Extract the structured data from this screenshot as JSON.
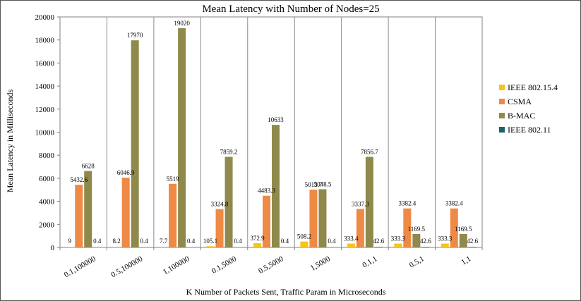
{
  "chart_data": {
    "type": "bar",
    "title": "Mean Latency with Number of Nodes=25",
    "xlabel": "K Number of Packets Sent, Traffic Param in Microseconds",
    "ylabel": "Mean Latency in Milliseconds",
    "ylim": [
      0,
      20000
    ],
    "yticks": [
      "0",
      "2000",
      "4000",
      "6000",
      "8000",
      "10000",
      "12000",
      "14000",
      "16000",
      "18000",
      "20000"
    ],
    "grid": "vertical category separators",
    "legend_position": "right",
    "categories": [
      "0.1,100000",
      "0.5,100000",
      "1,100000",
      "0.1,5000",
      "0.5,5000",
      "1,5000",
      "0.1,1",
      "0.5,1",
      "1,1"
    ],
    "series": [
      {
        "name": "IEEE 802.15.4",
        "color": "#F5C518",
        "values": [
          9,
          8.2,
          7.7,
          105.1,
          372.9,
          508.2,
          333.4,
          333.3,
          333.3
        ],
        "labels": [
          "9",
          "8.2",
          "7.7",
          "105.1",
          "372.9",
          "508.2",
          "333.4",
          "333.3",
          "333.3"
        ]
      },
      {
        "name": "CSMA",
        "color": "#EE8A45",
        "values": [
          5432.6,
          6046.9,
          5519,
          3324.8,
          4483.3,
          5013.7,
          3337.3,
          3382.4,
          3382.4
        ],
        "labels": [
          "5432.6",
          "6046.9",
          "5519",
          "3324.8",
          "4483.3",
          "5013.7",
          "3337.3",
          "3382.4",
          "3382.4"
        ]
      },
      {
        "name": "B-MAC",
        "color": "#8F8A4C",
        "values": [
          6628,
          17970,
          19020,
          7859.2,
          10633,
          5048.5,
          7856.7,
          1169.5,
          1169.5
        ],
        "labels": [
          "6628",
          "17970",
          "19020",
          "7859.2",
          "10633",
          "5048.5",
          "7856.7",
          "1169.5",
          "1169.5"
        ]
      },
      {
        "name": "IEEE 802.11",
        "color": "#1F5F6B",
        "values": [
          0.4,
          0.4,
          0.4,
          0.4,
          0.4,
          0.4,
          42.6,
          42.6,
          42.6
        ],
        "labels": [
          "0.4",
          "0.4",
          "0.4",
          "0.4",
          "0.4",
          "0.4",
          "42.6",
          "42.6",
          "42.6"
        ]
      }
    ]
  }
}
